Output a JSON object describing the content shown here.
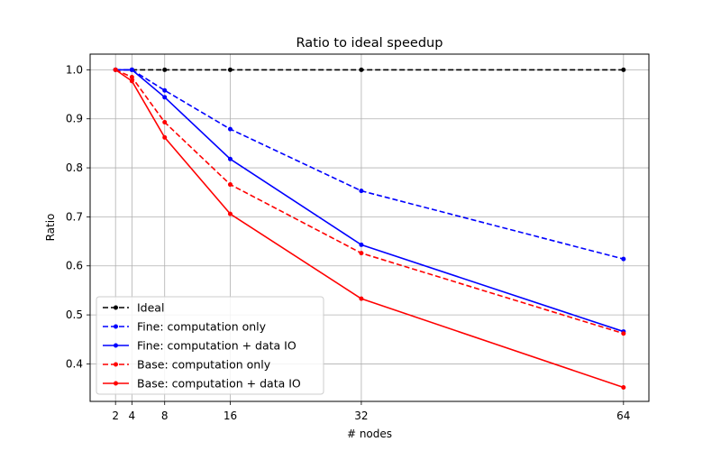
{
  "chart_data": {
    "type": "line",
    "title": "Ratio to ideal speedup",
    "xlabel": "# nodes",
    "ylabel": "Ratio",
    "x": [
      2,
      4,
      8,
      16,
      32,
      64
    ],
    "x_ticks": [
      2,
      4,
      8,
      16,
      32,
      64
    ],
    "x_tick_labels": [
      "2",
      "4",
      "8",
      "16",
      "32",
      "64"
    ],
    "xlim": [
      -1.1,
      67.1
    ],
    "y_ticks": [
      0.4,
      0.5,
      0.6,
      0.7,
      0.8,
      0.9,
      1.0
    ],
    "y_tick_labels": [
      "0.4",
      "0.5",
      "0.6",
      "0.7",
      "0.8",
      "0.9",
      "1.0"
    ],
    "ylim": [
      0.3235,
      1.032
    ],
    "grid": true,
    "legend_position": "lower-left",
    "series": [
      {
        "name": "Ideal",
        "color": "#000000",
        "dashed": true,
        "values": [
          1.0,
          1.0,
          1.0,
          1.0,
          1.0,
          1.0
        ]
      },
      {
        "name": "Fine: computation only",
        "color": "#0000ff",
        "dashed": true,
        "values": [
          1.0,
          1.0,
          0.958,
          0.879,
          0.753,
          0.614
        ]
      },
      {
        "name": "Fine: computation + data IO",
        "color": "#0000ff",
        "dashed": false,
        "values": [
          1.0,
          1.0,
          0.944,
          0.818,
          0.643,
          0.466
        ]
      },
      {
        "name": "Base: computation only",
        "color": "#ff0000",
        "dashed": true,
        "values": [
          1.0,
          0.985,
          0.893,
          0.766,
          0.626,
          0.462
        ]
      },
      {
        "name": "Base: computation + data IO",
        "color": "#ff0000",
        "dashed": false,
        "values": [
          1.0,
          0.977,
          0.862,
          0.706,
          0.533,
          0.352
        ]
      }
    ]
  }
}
